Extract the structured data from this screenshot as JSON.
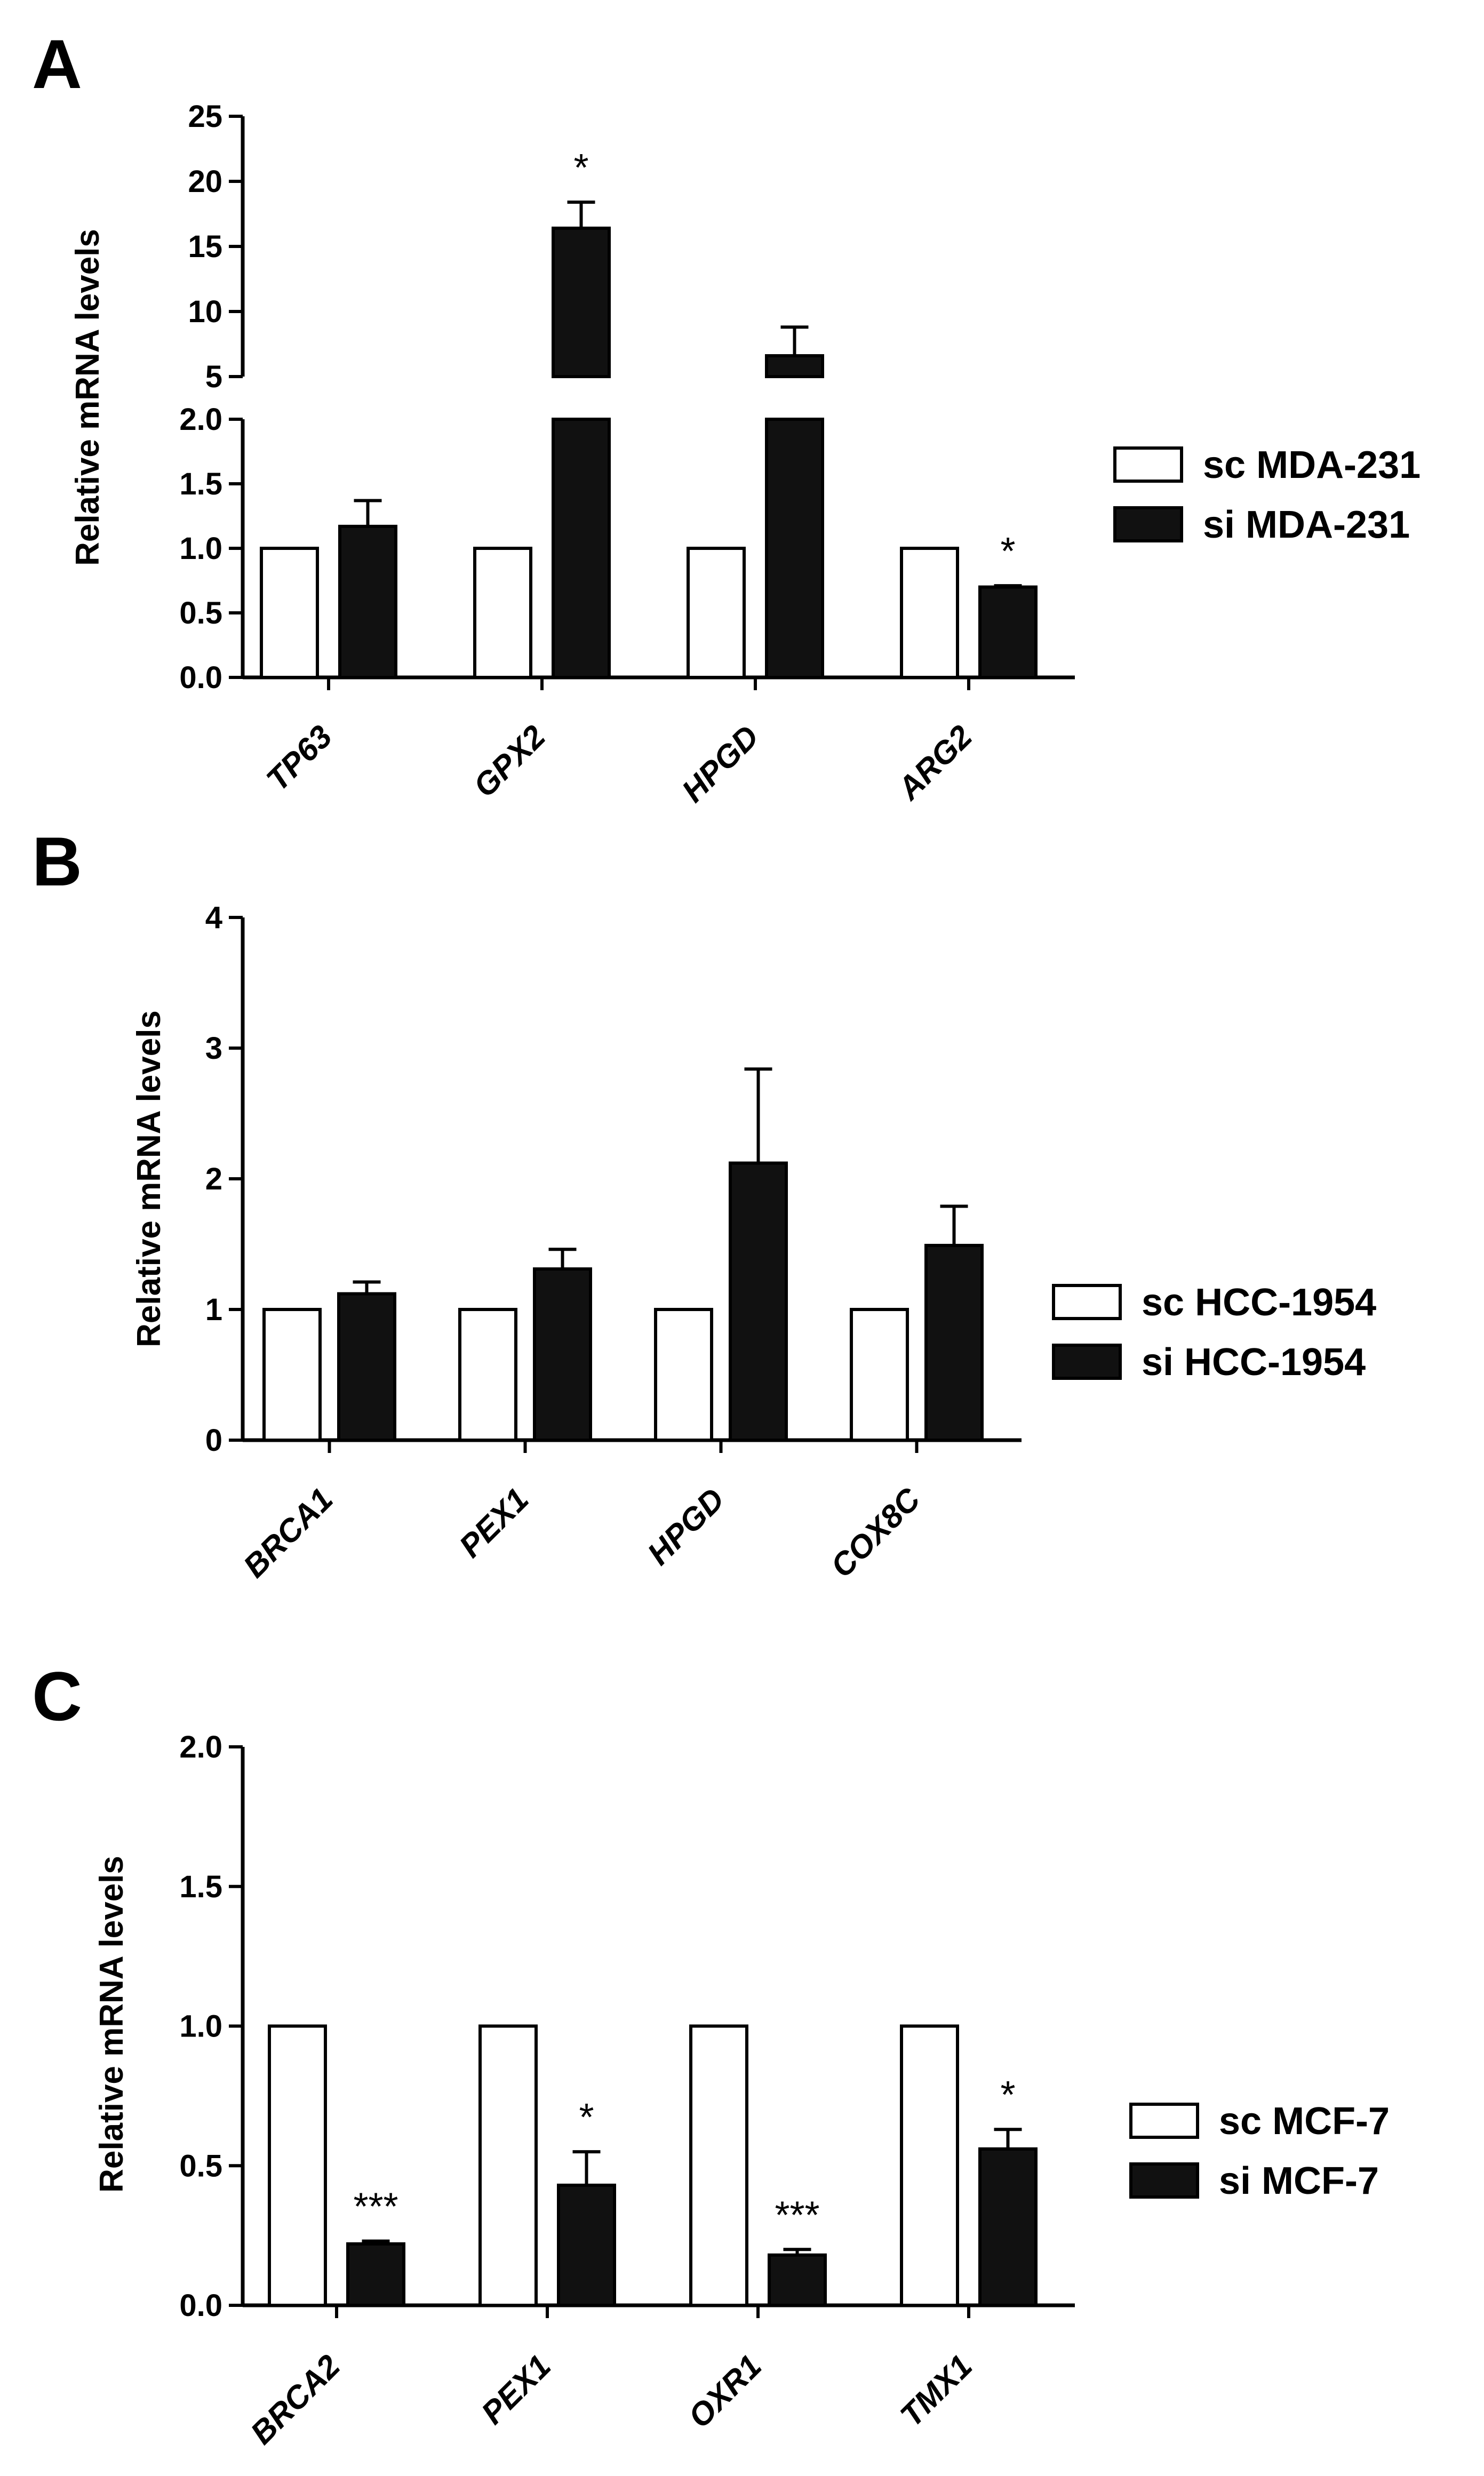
{
  "chart_data": [
    {
      "panel": "A",
      "type": "bar",
      "ylabel": "Relative mRNA levels",
      "axis_break": true,
      "lower_axis": {
        "ylim": [
          0,
          2.0
        ],
        "ticks": [
          0.0,
          0.5,
          1.0,
          1.5,
          2.0
        ],
        "tick_labels": [
          "0.0",
          "0.5",
          "1.0",
          "1.5",
          "2.0"
        ]
      },
      "upper_axis": {
        "ylim": [
          5,
          25
        ],
        "ticks": [
          5,
          10,
          15,
          20,
          25
        ],
        "tick_labels": [
          "5",
          "10",
          "15",
          "20",
          "25"
        ]
      },
      "categories": [
        "TP63",
        "GPX2",
        "HPGD",
        "ARG2"
      ],
      "series": [
        {
          "name": "sc MDA-231",
          "fill": "#ffffff",
          "values": [
            1.0,
            1.0,
            1.0,
            1.0
          ],
          "errors": [
            0,
            0,
            0,
            0
          ]
        },
        {
          "name": "si MDA-231",
          "fill": "#111111",
          "values": [
            1.17,
            16.4,
            6.6,
            0.7
          ],
          "errors": [
            0.2,
            2.0,
            2.2,
            0.01
          ]
        }
      ],
      "significance": [
        "",
        "*",
        "",
        "*"
      ]
    },
    {
      "panel": "B",
      "type": "bar",
      "ylabel": "Relative mRNA levels",
      "ylim": [
        0,
        4
      ],
      "ticks": [
        0,
        1,
        2,
        3,
        4
      ],
      "tick_labels": [
        "0",
        "1",
        "2",
        "3",
        "4"
      ],
      "categories": [
        "BRCA1",
        "PEX1",
        "HPGD",
        "COX8C"
      ],
      "series": [
        {
          "name": "sc HCC-1954",
          "fill": "#ffffff",
          "values": [
            1.0,
            1.0,
            1.0,
            1.0
          ],
          "errors": [
            0,
            0,
            0,
            0
          ]
        },
        {
          "name": "si HCC-1954",
          "fill": "#111111",
          "values": [
            1.12,
            1.31,
            2.12,
            1.49
          ],
          "errors": [
            0.09,
            0.15,
            0.72,
            0.3
          ]
        }
      ],
      "significance": [
        "",
        "",
        "",
        ""
      ]
    },
    {
      "panel": "C",
      "type": "bar",
      "ylabel": "Relative mRNA levels",
      "ylim": [
        0,
        2.0
      ],
      "ticks": [
        0.0,
        0.5,
        1.0,
        1.5,
        2.0
      ],
      "tick_labels": [
        "0.0",
        "0.5",
        "1.0",
        "1.5",
        "2.0"
      ],
      "categories": [
        "BRCA2",
        "PEX1",
        "OXR1",
        "TMX1"
      ],
      "series": [
        {
          "name": "sc MCF-7",
          "fill": "#ffffff",
          "values": [
            1.0,
            1.0,
            1.0,
            1.0
          ],
          "errors": [
            0,
            0,
            0,
            0
          ]
        },
        {
          "name": "si MCF-7",
          "fill": "#111111",
          "values": [
            0.22,
            0.43,
            0.18,
            0.56
          ],
          "errors": [
            0.01,
            0.12,
            0.02,
            0.07
          ]
        }
      ],
      "significance": [
        "***",
        "*",
        "***",
        "*"
      ]
    }
  ]
}
